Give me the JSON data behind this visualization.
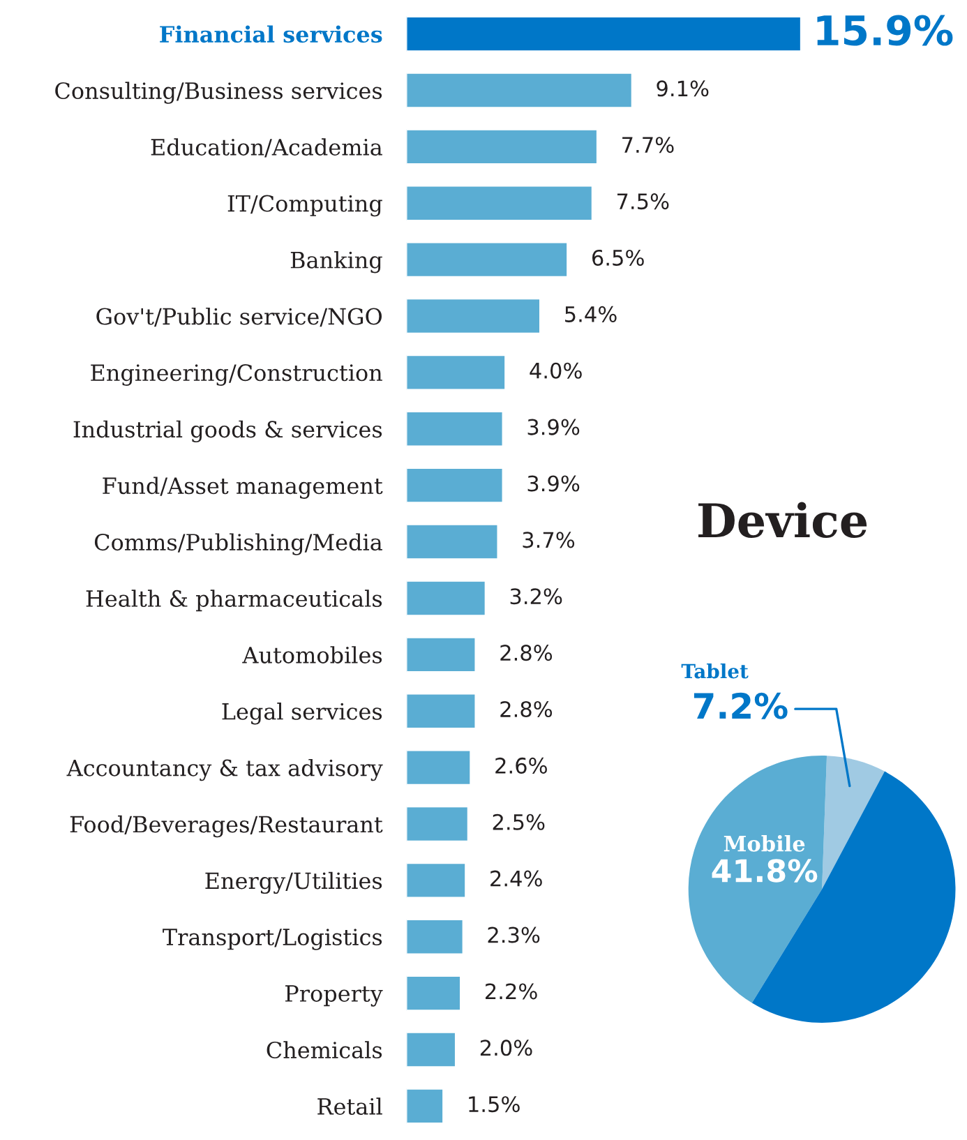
{
  "chart_data": [
    {
      "type": "bar",
      "orientation": "horizontal",
      "data_labels": true,
      "categories": [
        "Financial services",
        "Consulting/Business services",
        "Education/Academia",
        "IT/Computing",
        "Banking",
        "Gov't/Public service/NGO",
        "Engineering/Construction",
        "Industrial goods & services",
        "Fund/Asset management",
        "Comms/Publishing/Media",
        "Health & pharmaceuticals",
        "Automobiles",
        "Legal services",
        "Accountancy & tax advisory",
        "Food/Beverages/Restaurant",
        "Energy/Utilities",
        "Transport/Logistics",
        "Property",
        "Chemicals",
        "Retail"
      ],
      "values": [
        15.9,
        9.1,
        7.7,
        7.5,
        6.5,
        5.4,
        4.0,
        3.9,
        3.9,
        3.7,
        3.2,
        2.8,
        2.8,
        2.6,
        2.5,
        2.4,
        2.3,
        2.2,
        2.0,
        1.5
      ],
      "value_labels": [
        "15.9%",
        "9.1%",
        "7.7%",
        "7.5%",
        "6.5%",
        "5.4%",
        "4.0%",
        "3.9%",
        "3.9%",
        "3.7%",
        "3.2%",
        "2.8%",
        "2.8%",
        "2.6%",
        "2.5%",
        "2.4%",
        "2.3%",
        "2.2%",
        "2.0%",
        "1.5%"
      ],
      "colors": [
        "#0077c8",
        "#5aadd3",
        "#5aadd3",
        "#5aadd3",
        "#5aadd3",
        "#5aadd3",
        "#5aadd3",
        "#5aadd3",
        "#5aadd3",
        "#5aadd3",
        "#5aadd3",
        "#5aadd3",
        "#5aadd3",
        "#5aadd3",
        "#5aadd3",
        "#5aadd3",
        "#5aadd3",
        "#5aadd3",
        "#5aadd3",
        "#5aadd3"
      ],
      "legend": false,
      "grid": false,
      "tick_labels": "y"
    },
    {
      "type": "pie",
      "title": "Device",
      "categories": [
        "Tablet",
        "Mobile",
        null
      ],
      "values": [
        7.2,
        41.8,
        51.0
      ],
      "value_labels": [
        "7.2%",
        "41.8%",
        null
      ],
      "colors": [
        "#a0cae3",
        "#5aadd3",
        "#0077c8"
      ],
      "legend": false
    }
  ]
}
